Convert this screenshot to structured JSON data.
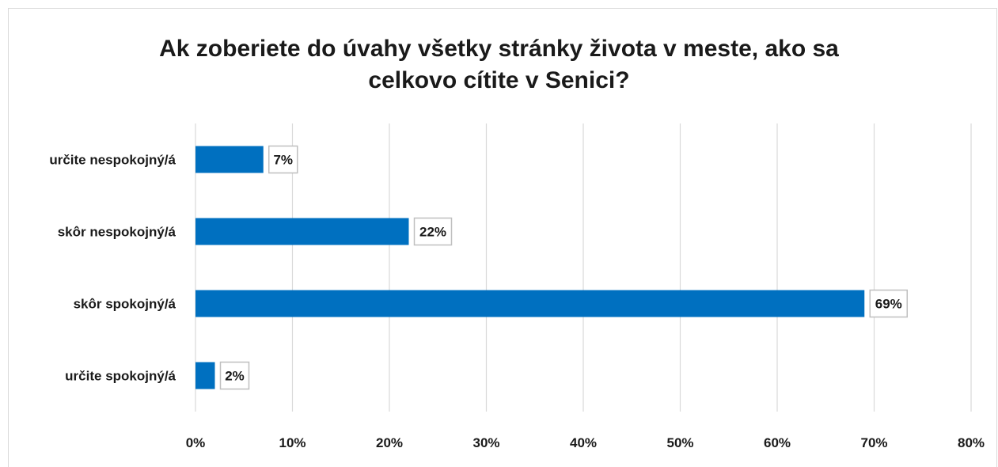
{
  "chart_data": {
    "type": "bar",
    "orientation": "horizontal",
    "title_line1": "Ak zoberiete do úvahy všetky stránky života v meste, ako sa",
    "title_line2": "celkovo cítite v Senici?",
    "categories": [
      "určite nespokojný/á",
      "skôr nespokojný/á",
      "skôr spokojný/á",
      "určite spokojný/á"
    ],
    "values": [
      7,
      22,
      69,
      2
    ],
    "data_labels": [
      "7%",
      "22%",
      "69%",
      "2%"
    ],
    "xlim": [
      0,
      80
    ],
    "x_ticks": [
      0,
      10,
      20,
      30,
      40,
      50,
      60,
      70,
      80
    ],
    "x_tick_labels": [
      "0%",
      "10%",
      "20%",
      "30%",
      "40%",
      "50%",
      "60%",
      "70%",
      "80%"
    ],
    "grid": true,
    "bar_color": "#0070c0",
    "grid_color": "#d9d9d9",
    "label_border_color": "#bfbfbf"
  }
}
